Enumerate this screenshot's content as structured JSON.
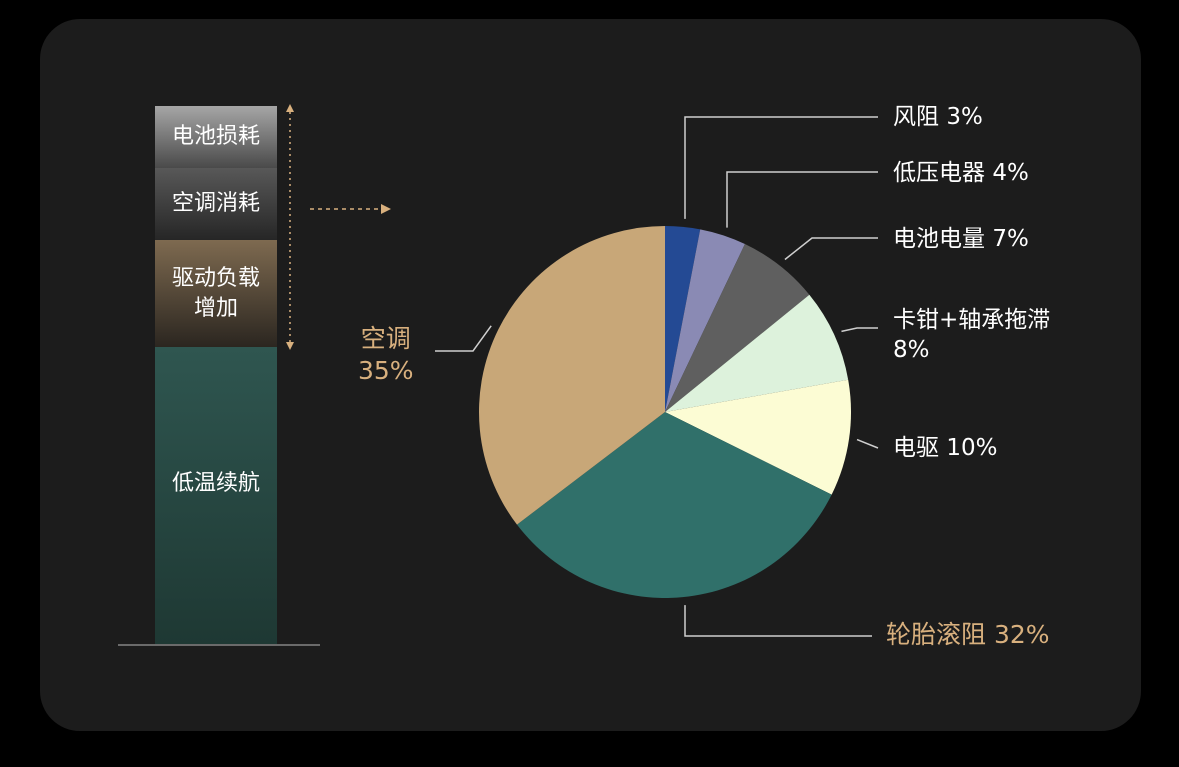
{
  "stack": {
    "segments": [
      {
        "id": "battery",
        "label": "电池损耗"
      },
      {
        "id": "ac",
        "label": "空调消耗"
      },
      {
        "id": "drive",
        "label": "驱动负载\n增加"
      },
      {
        "id": "range",
        "label": "低温续航"
      }
    ]
  },
  "chart_data": {
    "type": "pie",
    "title": "",
    "start_angle_deg": 0,
    "direction": "clockwise",
    "slices": [
      {
        "label": "风阻",
        "value": 3,
        "value_text": "3%",
        "color": "#244a94"
      },
      {
        "label": "低压电器",
        "value": 4,
        "value_text": "4%",
        "color": "#8a8ab4"
      },
      {
        "label": "电池电量",
        "value": 7,
        "value_text": "7%",
        "color": "#5f5f5f"
      },
      {
        "label": "卡钳+轴承拖滞",
        "value": 8,
        "value_text": "8%",
        "color": "#ddf2dc"
      },
      {
        "label": "电驱",
        "value": 10,
        "value_text": "10%",
        "color": "#fcfcd4"
      },
      {
        "label": "轮胎滚阻",
        "value": 32,
        "value_text": "32%",
        "color": "#30706a"
      },
      {
        "label": "空调",
        "value": 35,
        "value_text": "35%",
        "color": "#c8a778"
      }
    ],
    "label_colors": {
      "default": "#ffffff",
      "highlight": "#d8b07e"
    },
    "leader_color": "#cfcfcf"
  }
}
